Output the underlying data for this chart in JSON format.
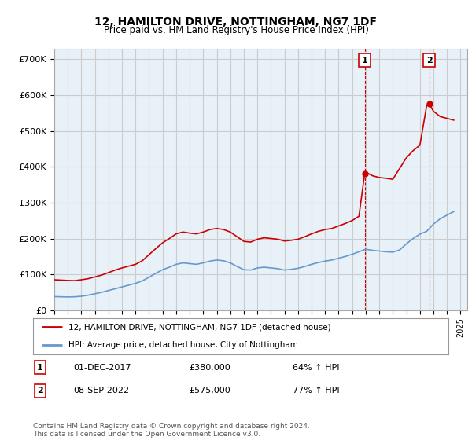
{
  "title": "12, HAMILTON DRIVE, NOTTINGHAM, NG7 1DF",
  "subtitle": "Price paid vs. HM Land Registry's House Price Index (HPI)",
  "ylabel_ticks": [
    "£0",
    "£100K",
    "£200K",
    "£300K",
    "£400K",
    "£500K",
    "£600K",
    "£700K"
  ],
  "ytick_values": [
    0,
    100000,
    200000,
    300000,
    400000,
    500000,
    600000,
    700000
  ],
  "ylim": [
    0,
    730000
  ],
  "xlim_start": 1995.0,
  "xlim_end": 2025.5,
  "background_color": "#ffffff",
  "grid_color": "#cccccc",
  "plot_bg_color": "#e8f0f8",
  "red_color": "#cc0000",
  "blue_color": "#6699cc",
  "marker1_x": 2017.92,
  "marker1_y": 380000,
  "marker2_x": 2022.69,
  "marker2_y": 575000,
  "sale1_label": "1",
  "sale2_label": "2",
  "sale1_date": "01-DEC-2017",
  "sale1_price": "£380,000",
  "sale1_hpi": "64% ↑ HPI",
  "sale2_date": "08-SEP-2022",
  "sale2_price": "£575,000",
  "sale2_hpi": "77% ↑ HPI",
  "legend1": "12, HAMILTON DRIVE, NOTTINGHAM, NG7 1DF (detached house)",
  "legend2": "HPI: Average price, detached house, City of Nottingham",
  "footnote": "Contains HM Land Registry data © Crown copyright and database right 2024.\nThis data is licensed under the Open Government Licence v3.0.",
  "hpi_red_x": [
    1995.0,
    1995.5,
    1996.0,
    1996.5,
    1997.0,
    1997.5,
    1998.0,
    1998.5,
    1999.0,
    1999.5,
    2000.0,
    2000.5,
    2001.0,
    2001.5,
    2002.0,
    2002.5,
    2003.0,
    2003.5,
    2004.0,
    2004.5,
    2005.0,
    2005.5,
    2006.0,
    2006.5,
    2007.0,
    2007.5,
    2008.0,
    2008.5,
    2009.0,
    2009.5,
    2010.0,
    2010.5,
    2011.0,
    2011.5,
    2012.0,
    2012.5,
    2013.0,
    2013.5,
    2014.0,
    2014.5,
    2015.0,
    2015.5,
    2016.0,
    2016.5,
    2017.0,
    2017.5,
    2017.92,
    2018.0,
    2018.5,
    2019.0,
    2019.5,
    2020.0,
    2020.5,
    2021.0,
    2021.5,
    2022.0,
    2022.5,
    2022.69,
    2023.0,
    2023.5,
    2024.0,
    2024.5
  ],
  "hpi_red_y": [
    85000,
    84000,
    83000,
    82500,
    85000,
    88000,
    93000,
    98000,
    105000,
    112000,
    118000,
    123000,
    128000,
    138000,
    155000,
    172000,
    188000,
    200000,
    213000,
    218000,
    215000,
    213000,
    218000,
    225000,
    228000,
    225000,
    218000,
    205000,
    192000,
    190000,
    198000,
    202000,
    200000,
    198000,
    193000,
    195000,
    198000,
    205000,
    213000,
    220000,
    225000,
    228000,
    235000,
    242000,
    250000,
    262000,
    380000,
    385000,
    375000,
    370000,
    368000,
    365000,
    395000,
    425000,
    445000,
    460000,
    570000,
    575000,
    555000,
    540000,
    535000,
    530000
  ],
  "hpi_blue_x": [
    1995.0,
    1995.5,
    1996.0,
    1996.5,
    1997.0,
    1997.5,
    1998.0,
    1998.5,
    1999.0,
    1999.5,
    2000.0,
    2000.5,
    2001.0,
    2001.5,
    2002.0,
    2002.5,
    2003.0,
    2003.5,
    2004.0,
    2004.5,
    2005.0,
    2005.5,
    2006.0,
    2006.5,
    2007.0,
    2007.5,
    2008.0,
    2008.5,
    2009.0,
    2009.5,
    2010.0,
    2010.5,
    2011.0,
    2011.5,
    2012.0,
    2012.5,
    2013.0,
    2013.5,
    2014.0,
    2014.5,
    2015.0,
    2015.5,
    2016.0,
    2016.5,
    2017.0,
    2017.5,
    2018.0,
    2018.5,
    2019.0,
    2019.5,
    2020.0,
    2020.5,
    2021.0,
    2021.5,
    2022.0,
    2022.5,
    2023.0,
    2023.5,
    2024.0,
    2024.5
  ],
  "hpi_blue_y": [
    38000,
    37500,
    37000,
    37500,
    39000,
    42000,
    46000,
    50000,
    55000,
    60000,
    65000,
    70000,
    75000,
    82000,
    92000,
    103000,
    113000,
    120000,
    128000,
    132000,
    130000,
    128000,
    132000,
    137000,
    140000,
    138000,
    132000,
    122000,
    113000,
    112000,
    118000,
    120000,
    118000,
    116000,
    112000,
    114000,
    117000,
    122000,
    128000,
    133000,
    137000,
    140000,
    145000,
    150000,
    156000,
    163000,
    170000,
    167000,
    165000,
    163000,
    162000,
    168000,
    185000,
    200000,
    212000,
    220000,
    240000,
    255000,
    265000,
    275000
  ]
}
